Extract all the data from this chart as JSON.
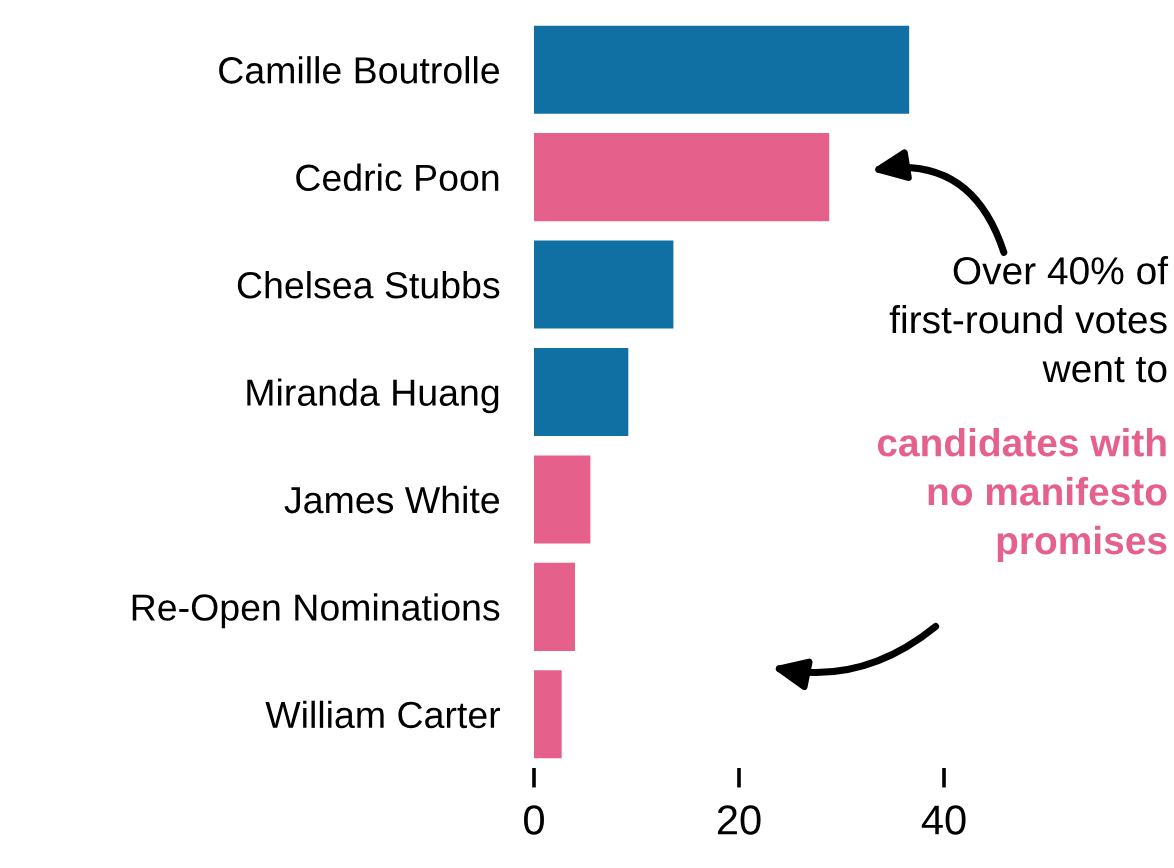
{
  "chart_data": {
    "type": "bar",
    "orientation": "horizontal",
    "categories": [
      "Camille Boutrolle",
      "Cedric Poon",
      "Chelsea Stubbs",
      "Miranda Huang",
      "James White",
      "Re-Open Nominations",
      "William Carter"
    ],
    "values": [
      36.6,
      28.8,
      13.6,
      9.2,
      5.5,
      4.0,
      2.7
    ],
    "colors": [
      "#1170a3",
      "#e5608b",
      "#1170a3",
      "#1170a3",
      "#e5608b",
      "#e5608b",
      "#e5608b"
    ],
    "xlim": [
      0,
      40
    ],
    "xticks": [
      0,
      20,
      40
    ],
    "grid": false,
    "legend": false,
    "annotations": [
      "Over 40% of\nfirst-round votes\nwent to",
      "candidates with\nno manifesto\npromises"
    ]
  }
}
